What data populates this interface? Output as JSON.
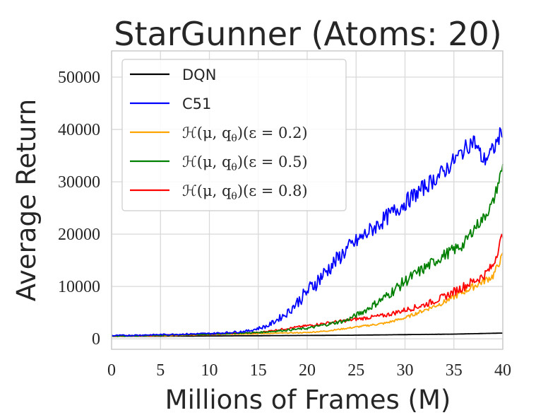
{
  "chart_data": {
    "type": "line",
    "title": "StarGunner (Atoms: 20)",
    "xlabel": "Millions of Frames (M)",
    "ylabel": "Average Return",
    "xlim": [
      0,
      40
    ],
    "ylim": [
      -2000,
      55000
    ],
    "xticks": [
      0,
      5,
      10,
      15,
      20,
      25,
      30,
      35,
      40
    ],
    "yticks": [
      0,
      10000,
      20000,
      30000,
      40000,
      50000
    ],
    "grid": true,
    "legend_position": "top-left",
    "series": [
      {
        "name": "DQN",
        "color": "#000000",
        "x": [
          0,
          5,
          10,
          15,
          20,
          25,
          30,
          35,
          40
        ],
        "y": [
          500,
          500,
          550,
          600,
          650,
          700,
          800,
          900,
          1100
        ],
        "noise": 60
      },
      {
        "name": "C51",
        "color": "#0000ff",
        "x": [
          0,
          5,
          10,
          12,
          14,
          16,
          18,
          20,
          22,
          24,
          26,
          28,
          30,
          32,
          34,
          35,
          36,
          37,
          38,
          39,
          40
        ],
        "y": [
          600,
          800,
          1000,
          1200,
          1500,
          2500,
          5000,
          9000,
          13000,
          17000,
          20000,
          23000,
          26000,
          29000,
          32000,
          34000,
          36000,
          38000,
          34000,
          36000,
          40000
        ],
        "noise": 1600
      },
      {
        "name_prefix": "ℋ(μ, q",
        "name_sub": "θ",
        "name_suffix": ")(ε = 0.2)",
        "color": "#ffa500",
        "x": [
          0,
          5,
          10,
          15,
          20,
          22,
          24,
          26,
          28,
          30,
          32,
          34,
          36,
          38,
          39,
          40
        ],
        "y": [
          500,
          600,
          800,
          1000,
          1200,
          1500,
          2000,
          2500,
          3000,
          4000,
          5500,
          7000,
          9000,
          11000,
          12000,
          16000
        ],
        "noise": 700
      },
      {
        "name_prefix": "ℋ(μ, q",
        "name_sub": "θ",
        "name_suffix": ")(ε = 0.5)",
        "color": "#008000",
        "x": [
          0,
          5,
          10,
          15,
          20,
          24,
          26,
          28,
          30,
          32,
          34,
          36,
          37,
          38,
          39,
          40
        ],
        "y": [
          500,
          700,
          900,
          1200,
          2000,
          3500,
          5500,
          8000,
          11000,
          13500,
          16000,
          18000,
          21000,
          23000,
          26000,
          33000
        ],
        "noise": 1100
      },
      {
        "name_prefix": "ℋ(μ, q",
        "name_sub": "θ",
        "name_suffix": ")(ε = 0.8)",
        "color": "#ff0000",
        "x": [
          0,
          5,
          10,
          15,
          20,
          24,
          26,
          28,
          30,
          32,
          34,
          36,
          38,
          39,
          40
        ],
        "y": [
          500,
          700,
          900,
          1200,
          2500,
          3500,
          4000,
          4500,
          5500,
          6500,
          8000,
          10000,
          12000,
          14000,
          20000
        ],
        "noise": 900
      }
    ]
  }
}
